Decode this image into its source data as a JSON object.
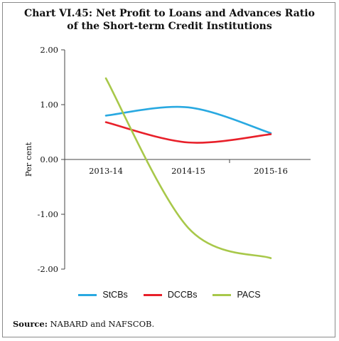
{
  "chart_data": {
    "type": "line",
    "title_line1": "Chart VI.45: Net Profit to Loans and Advances Ratio",
    "title_line2": "of the Short-term Credit Institutions",
    "ylabel": "Per cent",
    "xlabel": "",
    "categories": [
      "2013-14",
      "2014-15",
      "2015-16"
    ],
    "ylim": [
      -2.0,
      2.0
    ],
    "yticks": [
      "2.00",
      "1.00",
      "0.00",
      "-1.00",
      "-2.00"
    ],
    "ytick_values": [
      2.0,
      1.0,
      0.0,
      -1.0,
      -2.0
    ],
    "grid": false,
    "legend_position": "bottom",
    "series": [
      {
        "name": "StCBs",
        "color": "#29a9e1",
        "values": [
          0.8,
          0.95,
          0.48
        ]
      },
      {
        "name": "DCCBs",
        "color": "#e8202a",
        "values": [
          0.68,
          0.31,
          0.46
        ]
      },
      {
        "name": "PACS",
        "color": "#a8c84a",
        "values": [
          1.48,
          -1.25,
          -1.8
        ]
      }
    ]
  },
  "source": {
    "label": "Source:",
    "text": " NABARD and NAFSCOB."
  }
}
